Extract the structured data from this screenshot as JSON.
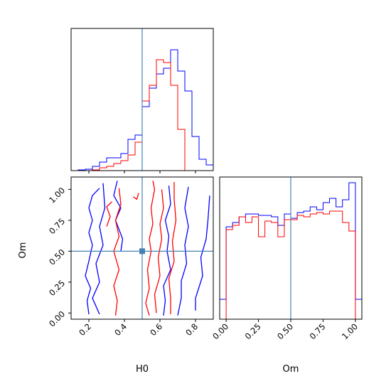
{
  "chart_data": {
    "type": "corner",
    "parameters": [
      "H0",
      "Om"
    ],
    "truth": {
      "H0": 0.5,
      "Om": 0.5
    },
    "colors": {
      "series_a": "#0000ff",
      "series_b": "#ff0000",
      "truth": "#4682b4"
    },
    "grid": false,
    "legend": "none",
    "panels": {
      "h0_hist": {
        "type": "step-histogram",
        "xlim": [
          0.1,
          0.9
        ],
        "xticks": [
          0.2,
          0.4,
          0.6,
          0.8
        ],
        "yticks": [],
        "ylim": [
          0,
          1.0
        ],
        "series": [
          {
            "color": "#0000ff",
            "edges": [
              0.14,
              0.18,
              0.22,
              0.26,
              0.3,
              0.34,
              0.38,
              0.42,
              0.46,
              0.5,
              0.54,
              0.58,
              0.62,
              0.66,
              0.7,
              0.74,
              0.78,
              0.82,
              0.86,
              0.9
            ],
            "values": [
              0.005,
              0.01,
              0.03,
              0.06,
              0.09,
              0.09,
              0.12,
              0.22,
              0.25,
              0.45,
              0.58,
              0.68,
              0.72,
              0.85,
              0.7,
              0.56,
              0.24,
              0.08,
              0.04
            ]
          },
          {
            "color": "#ff0000",
            "edges": [
              0.14,
              0.18,
              0.22,
              0.26,
              0.3,
              0.34,
              0.38,
              0.42,
              0.46,
              0.5,
              0.54,
              0.58,
              0.62,
              0.66,
              0.7,
              0.74
            ],
            "values": [
              0.0,
              0.0,
              0.005,
              0.02,
              0.03,
              0.05,
              0.07,
              0.11,
              0.2,
              0.49,
              0.6,
              0.78,
              0.76,
              0.6,
              0.29
            ]
          }
        ]
      },
      "joint": {
        "type": "contour",
        "xlabel": "H0",
        "ylabel": "Om",
        "xlim": [
          0.1,
          0.9
        ],
        "ylim": [
          -0.05,
          1.1
        ],
        "xticks": [
          0.2,
          0.4,
          0.6,
          0.8
        ],
        "yticks": [
          0.0,
          0.25,
          0.5,
          0.75,
          1.0
        ],
        "series": [
          {
            "color": "#0000ff",
            "contours": [
              [
                [
                  0.2,
                  -0.01
                ],
                [
                  0.19,
                  0.1
                ],
                [
                  0.21,
                  0.2
                ],
                [
                  0.18,
                  0.3
                ],
                [
                  0.2,
                  0.42
                ],
                [
                  0.22,
                  0.55
                ],
                [
                  0.2,
                  0.65
                ],
                [
                  0.22,
                  0.75
                ],
                [
                  0.2,
                  0.85
                ],
                [
                  0.22,
                  0.95
                ],
                [
                  0.26,
                  1.01
                ]
              ],
              [
                [
                  0.26,
                  -0.01
                ],
                [
                  0.22,
                  0.12
                ],
                [
                  0.26,
                  0.25
                ],
                [
                  0.24,
                  0.4
                ],
                [
                  0.28,
                  0.55
                ],
                [
                  0.26,
                  0.7
                ],
                [
                  0.29,
                  0.85
                ],
                [
                  0.28,
                  1.05
                ]
              ],
              [
                [
                  0.36,
                  1.07
                ],
                [
                  0.34,
                  0.95
                ],
                [
                  0.38,
                  0.85
                ],
                [
                  0.35,
                  0.75
                ],
                [
                  0.39,
                  0.6
                ],
                [
                  0.38,
                  0.5
                ]
              ],
              [
                [
                  0.62,
                  -0.02
                ],
                [
                  0.63,
                  0.1
                ],
                [
                  0.62,
                  0.22
                ],
                [
                  0.66,
                  0.35
                ],
                [
                  0.64,
                  0.5
                ],
                [
                  0.65,
                  0.62
                ],
                [
                  0.63,
                  0.75
                ],
                [
                  0.66,
                  0.88
                ],
                [
                  0.65,
                  1.03
                ]
              ],
              [
                [
                  0.7,
                  -0.02
                ],
                [
                  0.72,
                  0.12
                ],
                [
                  0.72,
                  0.26
                ],
                [
                  0.75,
                  0.4
                ],
                [
                  0.74,
                  0.55
                ],
                [
                  0.76,
                  0.7
                ],
                [
                  0.74,
                  0.85
                ],
                [
                  0.76,
                  1.02
                ]
              ],
              [
                [
                  0.8,
                  0.02
                ],
                [
                  0.8,
                  0.12
                ],
                [
                  0.84,
                  0.3
                ],
                [
                  0.83,
                  0.45
                ],
                [
                  0.86,
                  0.6
                ],
                [
                  0.87,
                  0.75
                ],
                [
                  0.88,
                  0.95
                ]
              ]
            ]
          },
          {
            "color": "#ff0000",
            "contours": [
              [
                [
                  0.35,
                  -0.02
                ],
                [
                  0.36,
                  0.1
                ],
                [
                  0.34,
                  0.22
                ],
                [
                  0.37,
                  0.35
                ],
                [
                  0.34,
                  0.5
                ],
                [
                  0.37,
                  0.62
                ],
                [
                  0.35,
                  0.75
                ],
                [
                  0.38,
                  0.88
                ],
                [
                  0.37,
                  1.01
                ]
              ],
              [
                [
                  0.3,
                  0.7
                ],
                [
                  0.32,
                  0.78
                ],
                [
                  0.3,
                  0.86
                ],
                [
                  0.33,
                  0.9
                ]
              ],
              [
                [
                  0.54,
                  -0.02
                ],
                [
                  0.52,
                  0.08
                ],
                [
                  0.54,
                  0.2
                ],
                [
                  0.53,
                  0.35
                ],
                [
                  0.55,
                  0.5
                ],
                [
                  0.54,
                  0.6
                ],
                [
                  0.56,
                  0.72
                ],
                [
                  0.55,
                  0.85
                ],
                [
                  0.57,
                  1.0
                ],
                [
                  0.56,
                  1.07
                ]
              ],
              [
                [
                  0.58,
                  0.0
                ],
                [
                  0.57,
                  0.15
                ],
                [
                  0.6,
                  0.3
                ],
                [
                  0.59,
                  0.45
                ],
                [
                  0.61,
                  0.6
                ],
                [
                  0.6,
                  0.72
                ],
                [
                  0.62,
                  0.85
                ],
                [
                  0.61,
                  1.0
                ]
              ],
              [
                [
                  0.66,
                  -0.01
                ],
                [
                  0.66,
                  0.12
                ],
                [
                  0.65,
                  0.28
                ],
                [
                  0.68,
                  0.42
                ],
                [
                  0.67,
                  0.58
                ],
                [
                  0.69,
                  0.75
                ],
                [
                  0.68,
                  0.92
                ],
                [
                  0.68,
                  1.06
                ]
              ],
              [
                [
                  0.45,
                  0.94
                ],
                [
                  0.47,
                  0.92
                ],
                [
                  0.48,
                  0.97
                ]
              ]
            ]
          }
        ]
      },
      "om_hist": {
        "type": "step-histogram",
        "xlabel": "Om",
        "xlim": [
          -0.05,
          1.05
        ],
        "xticks": [
          0.0,
          0.25,
          0.5,
          0.75,
          1.0
        ],
        "xtick_labels": [
          "0.00",
          "0.25",
          "0.50",
          "0.75",
          "1.00"
        ],
        "ylim": [
          0,
          1.0
        ],
        "series": [
          {
            "color": "#0000ff",
            "edges": [
              -0.05,
              0.0,
              0.05,
              0.1,
              0.15,
              0.2,
              0.25,
              0.3,
              0.35,
              0.4,
              0.45,
              0.5,
              0.55,
              0.6,
              0.65,
              0.7,
              0.75,
              0.8,
              0.85,
              0.9,
              0.95,
              1.0,
              1.05
            ],
            "values": [
              0.14,
              0.65,
              0.68,
              0.72,
              0.74,
              0.74,
              0.73,
              0.73,
              0.72,
              0.66,
              0.74,
              0.71,
              0.75,
              0.76,
              0.79,
              0.77,
              0.82,
              0.85,
              0.79,
              0.84,
              0.96,
              0.14
            ]
          },
          {
            "color": "#ff0000",
            "edges": [
              0.0,
              0.05,
              0.1,
              0.15,
              0.2,
              0.25,
              0.3,
              0.35,
              0.4,
              0.45,
              0.5,
              0.55,
              0.6,
              0.65,
              0.7,
              0.75,
              0.8,
              0.85,
              0.9,
              0.95,
              1.0
            ],
            "values": [
              0.63,
              0.66,
              0.72,
              0.68,
              0.72,
              0.58,
              0.69,
              0.68,
              0.58,
              0.7,
              0.7,
              0.73,
              0.72,
              0.74,
              0.75,
              0.74,
              0.76,
              0.76,
              0.68,
              0.62
            ]
          }
        ]
      }
    }
  }
}
